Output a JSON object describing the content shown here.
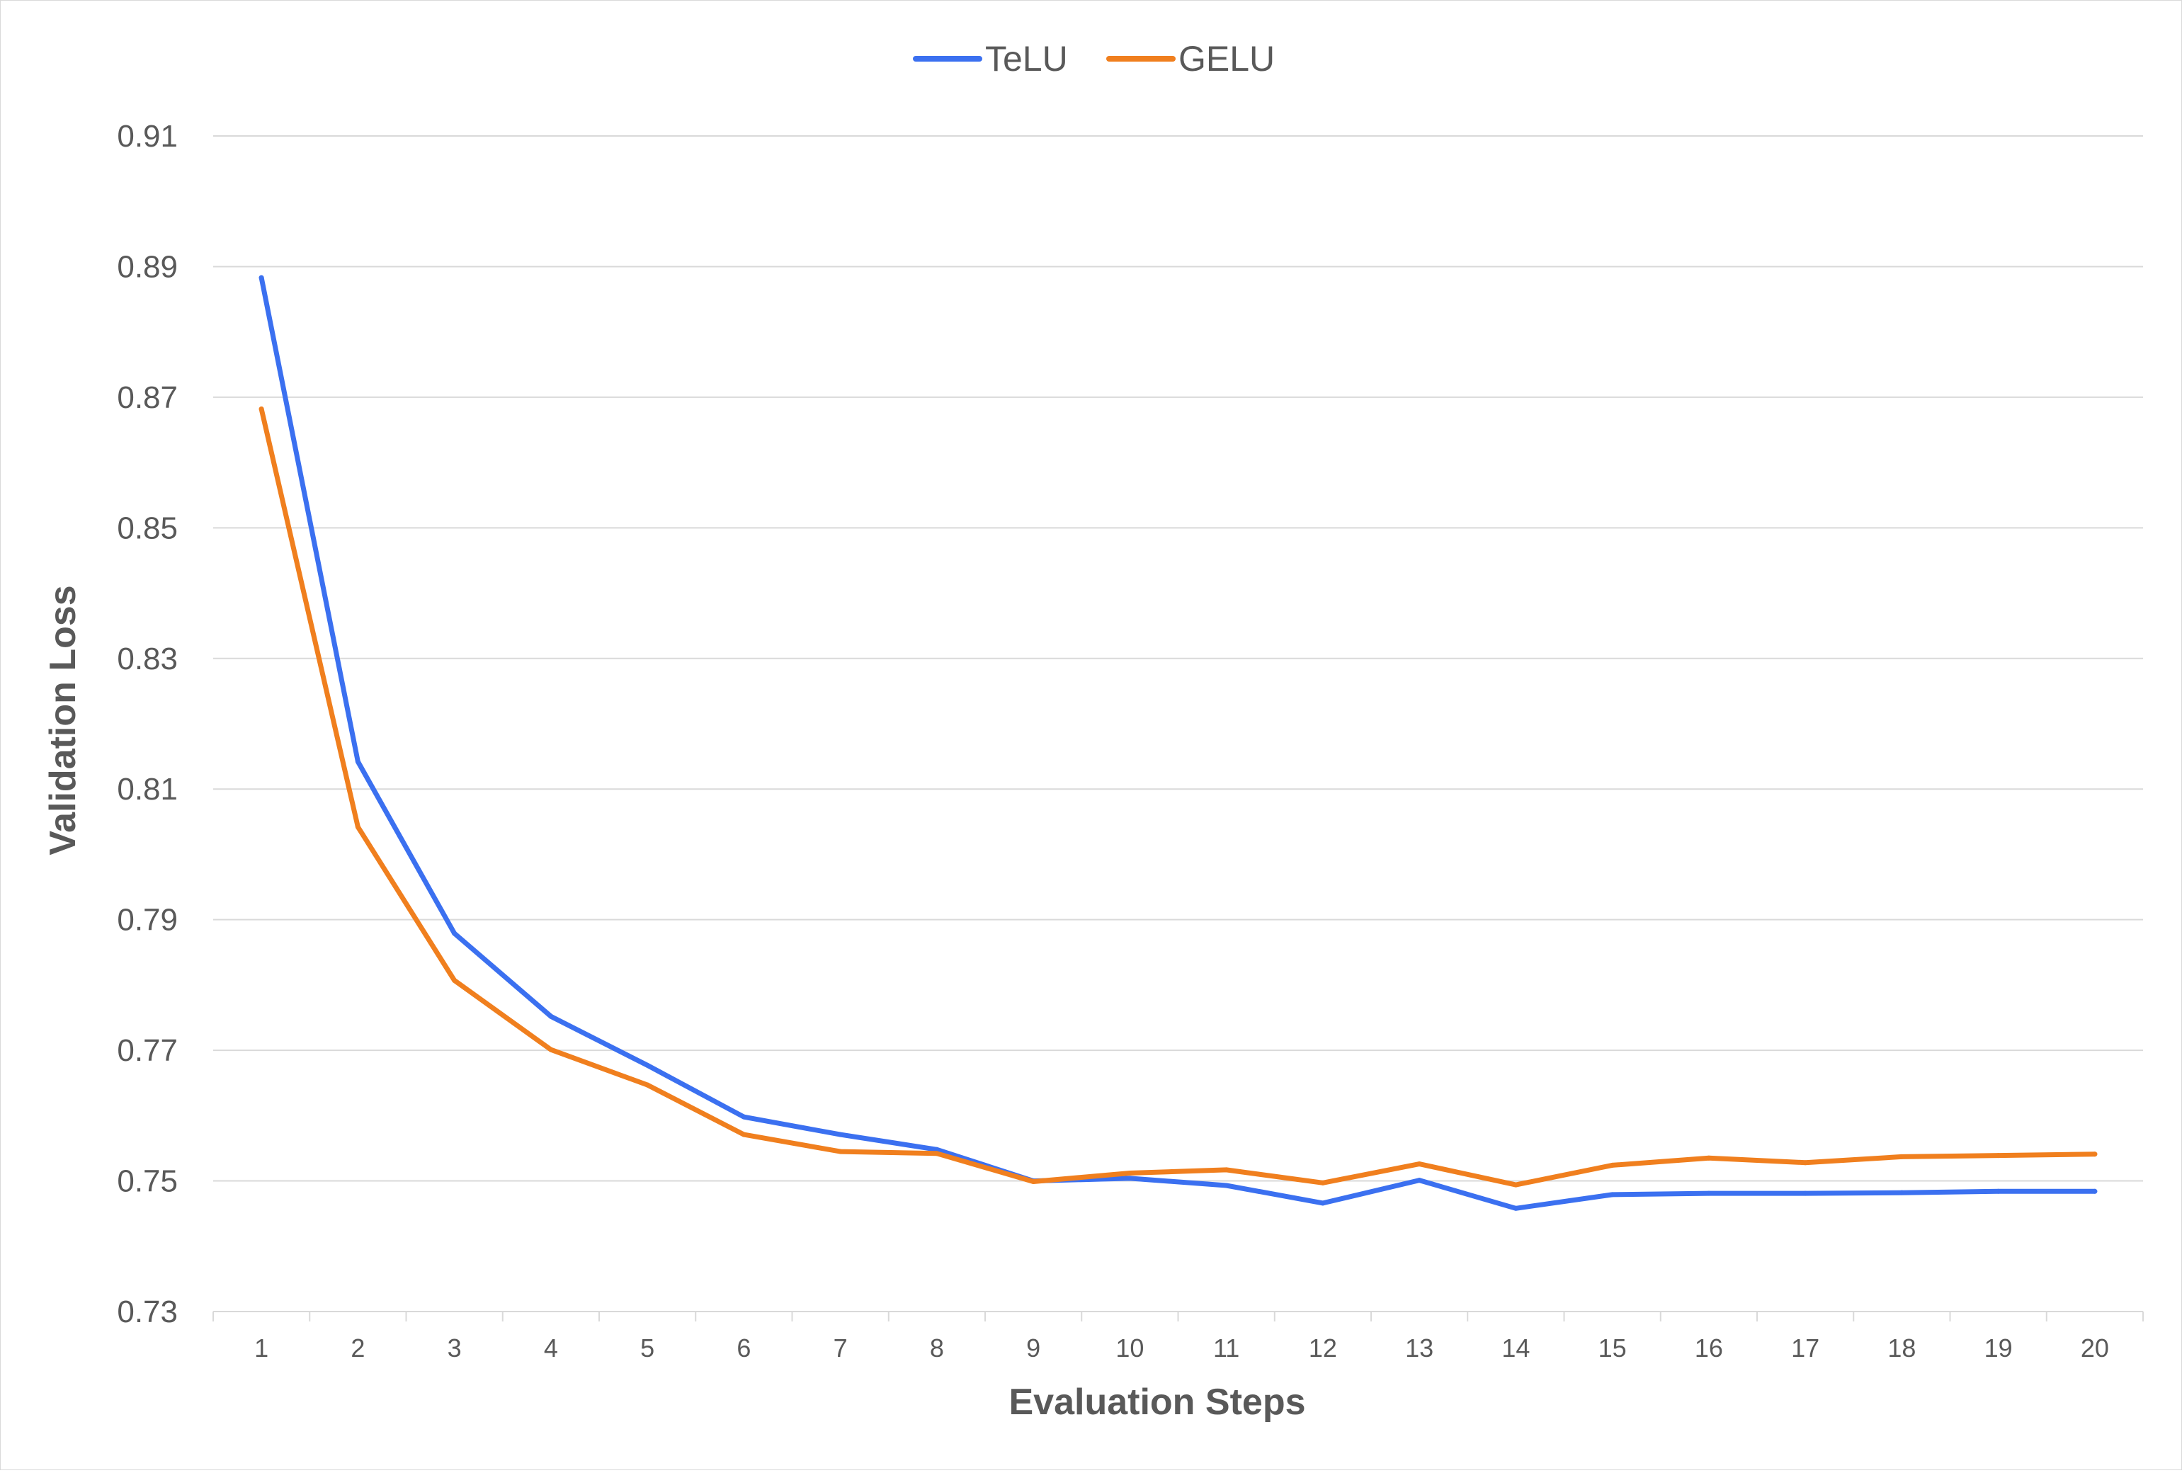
{
  "chart_data": {
    "type": "line",
    "title": "",
    "xlabel": "Evaluation Steps",
    "ylabel": "Validation Loss",
    "categories": [
      "1",
      "2",
      "3",
      "4",
      "5",
      "6",
      "7",
      "8",
      "9",
      "10",
      "11",
      "12",
      "13",
      "14",
      "15",
      "16",
      "17",
      "18",
      "19",
      "20"
    ],
    "y_ticks": [
      "0.73",
      "0.75",
      "0.77",
      "0.79",
      "0.81",
      "0.83",
      "0.85",
      "0.87",
      "0.89",
      "0.91"
    ],
    "ylim": [
      0.73,
      0.91
    ],
    "grid": true,
    "legend_position": "top-center",
    "series": [
      {
        "name": "TeLU",
        "color": "#3b70f0",
        "values": [
          0.8883,
          0.8142,
          0.7879,
          0.7752,
          0.7677,
          0.7598,
          0.7571,
          0.7548,
          0.75,
          0.7504,
          0.7493,
          0.7466,
          0.7501,
          0.7458,
          0.7479,
          0.7481,
          0.7481,
          0.7482,
          0.7484,
          0.7484
        ]
      },
      {
        "name": "GELU",
        "color": "#f07f1e",
        "values": [
          0.8682,
          0.8042,
          0.7807,
          0.7701,
          0.7647,
          0.7571,
          0.7545,
          0.7542,
          0.7499,
          0.7512,
          0.7517,
          0.7497,
          0.7526,
          0.7494,
          0.7524,
          0.7535,
          0.7528,
          0.7537,
          0.7539,
          0.7541
        ]
      }
    ]
  }
}
